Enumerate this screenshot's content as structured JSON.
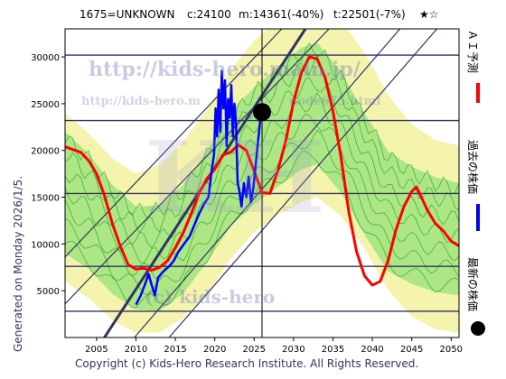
{
  "header": {
    "code_name": "1675=UNKNOWN",
    "current": "c:24100",
    "minimum": "m:14361(-40%)",
    "target": "t:22501(-7%)",
    "rating": "★☆"
  },
  "side_caption": "Generated on Monday 2026/1/5.",
  "legend": [
    {
      "label": "ＡＩ予測",
      "color": "#ff0000",
      "marker": "line"
    },
    {
      "label": "過去の株価",
      "color": "#0000ff",
      "marker": "line"
    },
    {
      "label": "最新の株価",
      "color": "#000000",
      "marker": "dot"
    }
  ],
  "footer": "Copyright (c) Kids-Hero Research Institute. All Rights Reserved.",
  "watermarks": [
    "http://kids-hero.main.jp/",
    "http://kids-hero.m",
    "node675.html",
    "KH",
    "(c) kids-hero"
  ],
  "colors": {
    "ai_forecast": "#ff0000",
    "past_price": "#0000ff",
    "latest_price": "#000000",
    "band_light": "#f2f2a0",
    "band_green": "#9be37a",
    "band_lines": "#2ea02e",
    "hlines": "#333366",
    "diagonals": "#333366"
  },
  "chart_data": {
    "type": "line",
    "xlim": [
      2001,
      2051
    ],
    "ylim": [
      0,
      33000
    ],
    "x_ticks": [
      2005,
      2010,
      2015,
      2020,
      2025,
      2030,
      2035,
      2040,
      2045,
      2050
    ],
    "y_ticks": [
      5000,
      10000,
      15000,
      20000,
      25000,
      30000
    ],
    "grid": false,
    "hlines": [
      2800,
      7600,
      15400,
      23200,
      30200
    ],
    "latest": {
      "x": 2026.0,
      "y": 24100
    },
    "latest_vline_x": 2026.0,
    "diagonals": [
      {
        "from": [
          2001,
          3600
        ],
        "to": [
          2034.5,
          33000
        ]
      },
      {
        "from": [
          2001,
          8600
        ],
        "to": [
          2028.5,
          33000
        ]
      },
      {
        "from": [
          2009.8,
          0
        ],
        "to": [
          2043.5,
          33000
        ]
      },
      {
        "from": [
          2014.2,
          0
        ],
        "to": [
          2048.2,
          33000
        ]
      },
      {
        "from": [
          2006,
          0
        ],
        "to": [
          2031.5,
          33000
        ],
        "thick": true
      }
    ],
    "series": [
      {
        "name": "ＡＩ予測",
        "color": "#ff0000",
        "points": [
          [
            2001,
            20400
          ],
          [
            2003,
            19800
          ],
          [
            2004,
            18900
          ],
          [
            2005,
            17500
          ],
          [
            2006,
            15200
          ],
          [
            2007,
            12200
          ],
          [
            2008,
            9800
          ],
          [
            2009,
            7800
          ],
          [
            2010,
            7300
          ],
          [
            2011,
            7400
          ],
          [
            2012,
            7200
          ],
          [
            2013,
            7500
          ],
          [
            2014,
            8200
          ],
          [
            2015,
            9600
          ],
          [
            2016,
            11200
          ],
          [
            2017,
            13200
          ],
          [
            2018,
            15400
          ],
          [
            2019,
            17000
          ],
          [
            2020,
            18000
          ],
          [
            2021,
            19500
          ],
          [
            2022,
            19800
          ],
          [
            2023,
            20600
          ],
          [
            2024,
            20000
          ],
          [
            2025,
            17800
          ],
          [
            2026,
            15500
          ],
          [
            2027,
            15400
          ],
          [
            2028,
            17800
          ],
          [
            2029,
            21000
          ],
          [
            2030,
            25200
          ],
          [
            2031,
            28300
          ],
          [
            2032,
            30000
          ],
          [
            2033,
            29800
          ],
          [
            2034,
            27800
          ],
          [
            2035,
            24200
          ],
          [
            2036,
            19400
          ],
          [
            2037,
            13500
          ],
          [
            2038,
            9200
          ],
          [
            2039,
            6600
          ],
          [
            2040,
            5600
          ],
          [
            2041,
            6000
          ],
          [
            2042,
            8200
          ],
          [
            2043,
            11500
          ],
          [
            2044,
            14000
          ],
          [
            2045,
            15600
          ],
          [
            2045.6,
            16100
          ],
          [
            2046,
            15400
          ],
          [
            2047,
            13600
          ],
          [
            2048,
            12200
          ],
          [
            2049,
            11400
          ],
          [
            2050,
            10300
          ],
          [
            2051,
            9800
          ]
        ]
      },
      {
        "name": "過去の株価",
        "color": "#0000ff",
        "points": [
          [
            2010,
            3500
          ],
          [
            2010.6,
            4500
          ],
          [
            2011.2,
            5800
          ],
          [
            2011.6,
            6800
          ],
          [
            2012,
            5600
          ],
          [
            2012.4,
            4500
          ],
          [
            2012.8,
            6400
          ],
          [
            2013.4,
            7000
          ],
          [
            2014.2,
            7600
          ],
          [
            2014.8,
            8200
          ],
          [
            2015.4,
            9200
          ],
          [
            2016.2,
            10100
          ],
          [
            2016.8,
            10800
          ],
          [
            2017.4,
            12000
          ],
          [
            2018,
            13200
          ],
          [
            2018.6,
            14200
          ],
          [
            2019.2,
            15000
          ],
          [
            2019.6,
            17800
          ],
          [
            2019.9,
            19500
          ],
          [
            2020.1,
            24500
          ],
          [
            2020.3,
            21500
          ],
          [
            2020.5,
            26500
          ],
          [
            2020.7,
            22000
          ],
          [
            2020.9,
            28500
          ],
          [
            2021.1,
            24500
          ],
          [
            2021.3,
            27500
          ],
          [
            2021.5,
            20500
          ],
          [
            2021.7,
            25500
          ],
          [
            2021.9,
            23500
          ],
          [
            2022.1,
            27000
          ],
          [
            2022.3,
            21500
          ],
          [
            2022.5,
            25000
          ],
          [
            2022.7,
            23000
          ],
          [
            2022.9,
            16500
          ],
          [
            2023.1,
            15800
          ],
          [
            2023.4,
            14000
          ],
          [
            2023.7,
            16500
          ],
          [
            2024,
            15000
          ],
          [
            2024.3,
            17200
          ],
          [
            2024.6,
            14500
          ],
          [
            2024.9,
            16000
          ],
          [
            2025.2,
            18500
          ],
          [
            2025.5,
            21000
          ],
          [
            2025.8,
            23500
          ],
          [
            2026,
            24100
          ]
        ]
      }
    ],
    "bands": [
      {
        "name": "light",
        "center": [
          [
            2001,
            15000
          ],
          [
            2004,
            13000
          ],
          [
            2007,
            10500
          ],
          [
            2010,
            9000
          ],
          [
            2013,
            9500
          ],
          [
            2016,
            11500
          ],
          [
            2019,
            14500
          ],
          [
            2022,
            18500
          ],
          [
            2025,
            21500
          ],
          [
            2028,
            23500
          ],
          [
            2031,
            25000
          ],
          [
            2033,
            25500
          ],
          [
            2036,
            23500
          ],
          [
            2039,
            20000
          ],
          [
            2042,
            15500
          ],
          [
            2045,
            12500
          ],
          [
            2048,
            11000
          ],
          [
            2051,
            10500
          ]
        ],
        "half": [
          [
            2001,
            9000
          ],
          [
            2010,
            8500
          ],
          [
            2020,
            10000
          ],
          [
            2030,
            10500
          ],
          [
            2040,
            10500
          ],
          [
            2051,
            10000
          ]
        ]
      },
      {
        "name": "green",
        "center": [
          [
            2001,
            15500
          ],
          [
            2004,
            13500
          ],
          [
            2007,
            10500
          ],
          [
            2010,
            8500
          ],
          [
            2013,
            8500
          ],
          [
            2016,
            10500
          ],
          [
            2019,
            14000
          ],
          [
            2022,
            18000
          ],
          [
            2025,
            20500
          ],
          [
            2028,
            22500
          ],
          [
            2031,
            24500
          ],
          [
            2033,
            25000
          ],
          [
            2036,
            22000
          ],
          [
            2039,
            17500
          ],
          [
            2042,
            13500
          ],
          [
            2045,
            12000
          ],
          [
            2048,
            11000
          ],
          [
            2051,
            10500
          ]
        ],
        "half": [
          [
            2001,
            6500
          ],
          [
            2010,
            5500
          ],
          [
            2020,
            6000
          ],
          [
            2030,
            6500
          ],
          [
            2040,
            6500
          ],
          [
            2051,
            6000
          ]
        ]
      }
    ]
  }
}
